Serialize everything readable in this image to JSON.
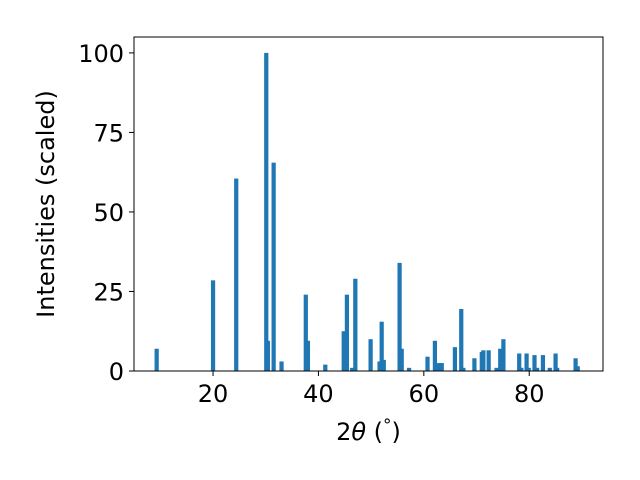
{
  "chart_data": {
    "type": "bar",
    "xlabel": "2θ (°)",
    "ylabel": "Intensities (scaled)",
    "xlim": [
      5,
      94
    ],
    "ylim": [
      0,
      105
    ],
    "xticks": [
      20,
      40,
      60,
      80
    ],
    "yticks": [
      0,
      25,
      50,
      75,
      100
    ],
    "bar_color": "#1f77b4",
    "grid": false,
    "bar_width": 0.8,
    "x": [
      9.3,
      20.0,
      24.4,
      30.1,
      30.4,
      31.5,
      33.0,
      37.6,
      38.0,
      41.3,
      44.8,
      45.4,
      46.4,
      47.0,
      49.9,
      51.6,
      52.0,
      52.4,
      55.4,
      55.8,
      57.2,
      60.7,
      62.1,
      62.9,
      63.4,
      65.9,
      67.1,
      67.5,
      69.6,
      71.0,
      71.3,
      72.3,
      73.8,
      74.5,
      75.1,
      78.1,
      78.5,
      79.5,
      79.9,
      81.0,
      81.5,
      82.6,
      83.9,
      85.0,
      85.3,
      88.8,
      89.2
    ],
    "values": [
      7.0,
      28.5,
      60.5,
      100.0,
      9.5,
      65.5,
      3.0,
      24.0,
      9.5,
      2.0,
      12.5,
      24.0,
      1.0,
      29.0,
      10.0,
      3.0,
      15.5,
      3.5,
      34.0,
      7.0,
      1.0,
      4.5,
      9.5,
      2.5,
      2.5,
      7.5,
      19.5,
      1.0,
      4.0,
      6.0,
      6.5,
      6.5,
      1.0,
      7.0,
      10.0,
      5.5,
      1.0,
      5.5,
      1.0,
      5.0,
      1.0,
      5.0,
      1.0,
      5.5,
      1.0,
      4.0,
      1.5
    ]
  }
}
